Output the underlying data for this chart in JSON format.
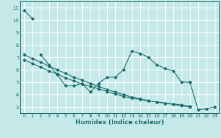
{
  "xlabel": "Humidex (Indice chaleur)",
  "ylabel": "",
  "bg_color": "#c5e8e8",
  "grid_color": "#ffffff",
  "line_color": "#1a6b6b",
  "xlim": [
    -0.5,
    23.5
  ],
  "ylim": [
    2.5,
    11.5
  ],
  "xticks": [
    0,
    1,
    2,
    3,
    4,
    5,
    6,
    7,
    8,
    9,
    10,
    11,
    12,
    13,
    14,
    15,
    16,
    17,
    18,
    19,
    20,
    21,
    22,
    23
  ],
  "yticks": [
    3,
    4,
    5,
    6,
    7,
    8,
    9,
    10,
    11
  ],
  "series": [
    {
      "x": [
        0,
        1
      ],
      "y": [
        10.8,
        10.1
      ]
    },
    {
      "x": [
        2,
        3,
        4,
        5,
        6,
        7,
        8,
        9,
        10,
        11,
        12,
        13,
        14,
        15,
        16,
        17,
        18,
        19,
        20
      ],
      "y": [
        7.2,
        6.4,
        5.6,
        4.7,
        4.7,
        4.9,
        4.2,
        4.9,
        5.4,
        5.4,
        6.0,
        7.5,
        7.3,
        7.0,
        6.4,
        6.1,
        5.9,
        5.0,
        5.0
      ]
    },
    {
      "x": [
        20,
        21,
        22,
        23
      ],
      "y": [
        5.0,
        2.8,
        2.85,
        3.0
      ]
    },
    {
      "x": [
        0,
        1,
        2,
        3,
        4,
        5,
        6,
        7,
        8,
        9,
        10,
        11,
        12,
        13,
        14,
        15,
        16,
        17,
        18,
        19,
        20,
        21,
        22,
        23
      ],
      "y": [
        7.2,
        6.9,
        6.6,
        6.3,
        6.0,
        5.7,
        5.4,
        5.15,
        4.9,
        4.65,
        4.4,
        4.2,
        4.0,
        3.8,
        3.65,
        3.5,
        3.4,
        3.3,
        3.2,
        3.1,
        3.0,
        null,
        null,
        null
      ]
    },
    {
      "x": [
        0,
        1,
        2,
        3,
        4,
        5,
        6,
        7,
        8,
        9,
        10,
        11,
        12,
        13,
        14,
        15,
        16,
        17,
        18,
        19,
        20,
        21,
        22,
        23
      ],
      "y": [
        6.8,
        6.5,
        6.2,
        5.9,
        5.65,
        5.35,
        5.1,
        4.85,
        4.65,
        4.45,
        4.25,
        4.05,
        3.85,
        3.7,
        3.6,
        3.5,
        3.4,
        3.3,
        3.25,
        3.15,
        3.05,
        null,
        null,
        null
      ]
    }
  ]
}
